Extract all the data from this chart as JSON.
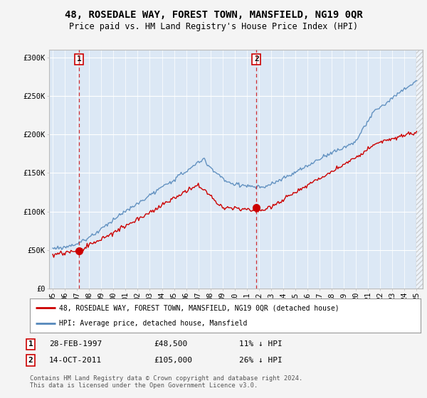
{
  "title": "48, ROSEDALE WAY, FOREST TOWN, MANSFIELD, NG19 0QR",
  "subtitle": "Price paid vs. HM Land Registry's House Price Index (HPI)",
  "ylim": [
    0,
    310000
  ],
  "xlim": [
    1994.7,
    2025.5
  ],
  "yticks": [
    0,
    50000,
    100000,
    150000,
    200000,
    250000,
    300000
  ],
  "ytick_labels": [
    "£0",
    "£50K",
    "£100K",
    "£150K",
    "£200K",
    "£250K",
    "£300K"
  ],
  "xticks": [
    1995,
    1996,
    1997,
    1998,
    1999,
    2000,
    2001,
    2002,
    2003,
    2004,
    2005,
    2006,
    2007,
    2008,
    2009,
    2010,
    2011,
    2012,
    2013,
    2014,
    2015,
    2016,
    2017,
    2018,
    2019,
    2020,
    2021,
    2022,
    2023,
    2024,
    2025
  ],
  "xtick_labels": [
    "95",
    "96",
    "97",
    "98",
    "99",
    "00",
    "01",
    "02",
    "03",
    "04",
    "05",
    "06",
    "07",
    "08",
    "09",
    "10",
    "11",
    "12",
    "13",
    "14",
    "15",
    "16",
    "17",
    "18",
    "19",
    "20",
    "21",
    "22",
    "23",
    "24",
    "25"
  ],
  "fig_bg_color": "#f4f4f4",
  "plot_bg_color": "#dce8f5",
  "grid_color": "#ffffff",
  "red_line_color": "#cc0000",
  "blue_line_color": "#5588bb",
  "marker1_x": 1997.167,
  "marker1_y": 48500,
  "marker2_x": 2011.79,
  "marker2_y": 105000,
  "vline1_x": 1997.167,
  "vline2_x": 2011.79,
  "hatch_start_x": 2025.0,
  "legend_label_red": "48, ROSEDALE WAY, FOREST TOWN, MANSFIELD, NG19 0QR (detached house)",
  "legend_label_blue": "HPI: Average price, detached house, Mansfield",
  "table_row1": [
    "1",
    "28-FEB-1997",
    "£48,500",
    "11% ↓ HPI"
  ],
  "table_row2": [
    "2",
    "14-OCT-2011",
    "£105,000",
    "26% ↓ HPI"
  ],
  "footnote": "Contains HM Land Registry data © Crown copyright and database right 2024.\nThis data is licensed under the Open Government Licence v3.0.",
  "title_fontsize": 10,
  "subtitle_fontsize": 8.5,
  "tick_fontsize": 7.5,
  "legend_fontsize": 7.5
}
